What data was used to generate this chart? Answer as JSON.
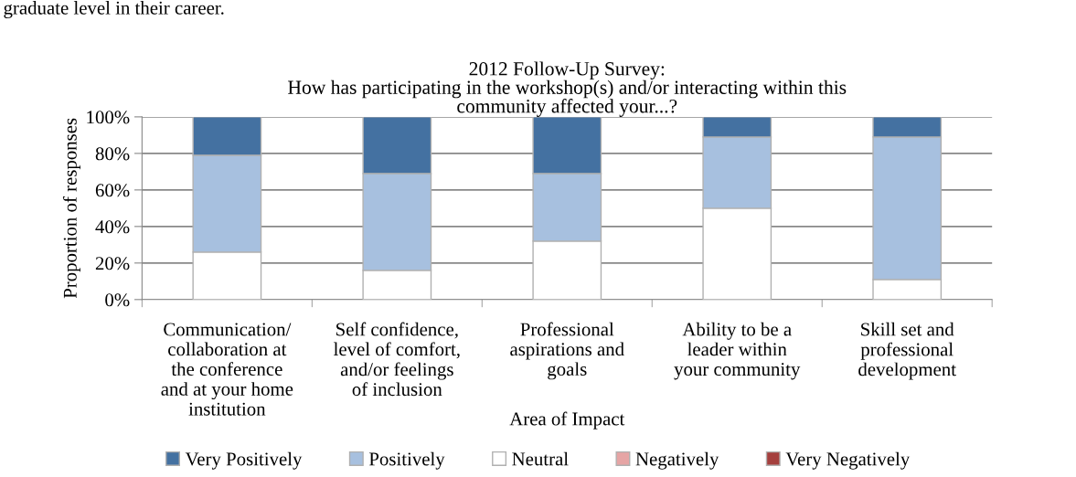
{
  "chart_data": {
    "type": "bar",
    "stacked": true,
    "title": "2012 Follow-Up Survey:\nHow has participating in the workshop(s) and/or interacting within this\ncommunity affected your...?",
    "xlabel": "Area of Impact",
    "ylabel": "Proportion of responses",
    "annotations": [
      "graduate level in their career."
    ],
    "categories": [
      "Communication/\ncollaboration at\nthe conference\nand at your home\ninstitution",
      "Self confidence,\nlevel of comfort,\nand/or feelings\nof inclusion",
      "Professional\naspirations and\ngoals",
      "Ability to be a\nleader within\nyour community",
      "Skill set and\nprofessional\ndevelopment"
    ],
    "series": [
      {
        "name": "Very Negatively",
        "color": "#a5403e",
        "values": [
          0,
          0,
          0,
          0,
          0
        ]
      },
      {
        "name": "Negatively",
        "color": "#e6a5a5",
        "values": [
          0,
          0,
          0,
          0,
          0
        ]
      },
      {
        "name": "Neutral",
        "color": "#ffffff",
        "values": [
          26,
          16,
          32,
          50,
          11
        ]
      },
      {
        "name": "Positively",
        "color": "#a7c0df",
        "values": [
          53,
          53,
          37,
          39,
          78
        ]
      },
      {
        "name": "Very Positively",
        "color": "#4471a1",
        "values": [
          21,
          31,
          31,
          11,
          11
        ]
      }
    ],
    "ylim": [
      0,
      100
    ],
    "yticks": [
      {
        "value": 0,
        "label": "0%"
      },
      {
        "value": 20,
        "label": "20%"
      },
      {
        "value": 40,
        "label": "40%"
      },
      {
        "value": 60,
        "label": "60%"
      },
      {
        "value": 80,
        "label": "80%"
      },
      {
        "value": 100,
        "label": "100%"
      }
    ],
    "grid": "y",
    "legend": "bottom"
  }
}
